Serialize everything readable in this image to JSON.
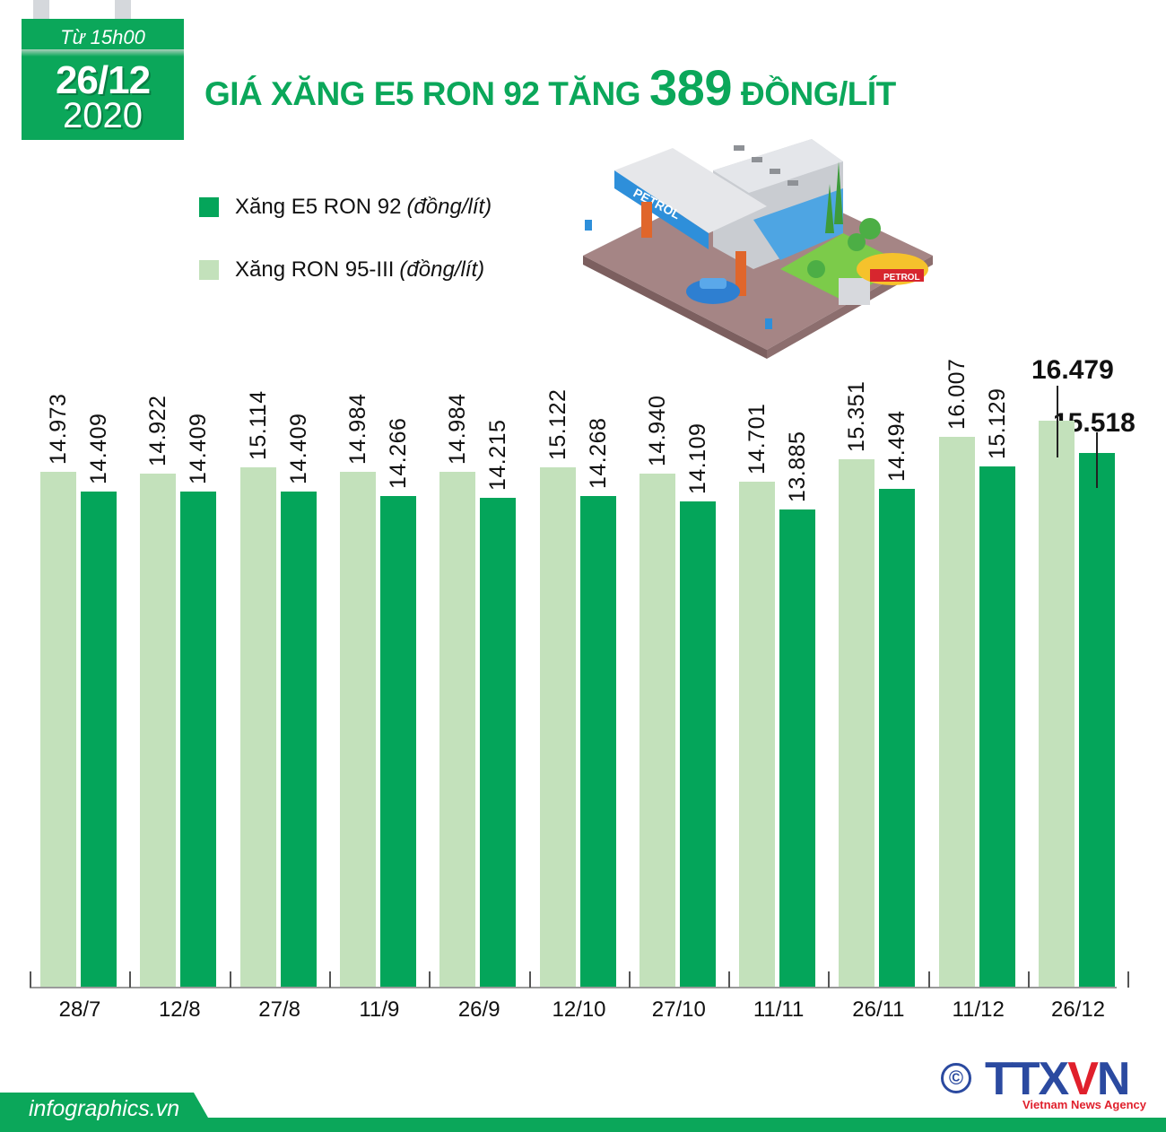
{
  "header": {
    "badge": {
      "from_time": "Từ 15h00",
      "date": "26/12",
      "year": "2020"
    },
    "title_prefix": "GIÁ XĂNG E5 RON 92 TĂNG",
    "title_number": "389",
    "title_suffix": "ĐỒNG/LÍT"
  },
  "legend": [
    {
      "name": "Xăng E5 RON 92",
      "unit": "(đồng/lít)",
      "color": "#04a55a"
    },
    {
      "name": "Xăng RON 95-III",
      "unit": "(đồng/lít)",
      "color": "#c3e1bb"
    }
  ],
  "illustration": {
    "sign_text": "PETROL",
    "tanker_text": "PETROL"
  },
  "colors": {
    "brand_green": "#0ba75a",
    "e5_ron92": "#04a55a",
    "ron95_iii": "#c3e1bb",
    "agency_blue": "#2b4aa0",
    "agency_red": "#e0202c"
  },
  "chart_data": {
    "type": "bar",
    "title": "GIÁ XĂNG E5 RON 92 TĂNG 389 ĐỒNG/LÍT",
    "subtitle": "Từ 15h00 26/12/2020",
    "xlabel": "",
    "ylabel": "đồng/lít",
    "grid": false,
    "legend_position": "top-left",
    "categories": [
      "28/7",
      "12/8",
      "27/8",
      "11/9",
      "26/9",
      "12/10",
      "27/10",
      "11/11",
      "26/11",
      "11/12",
      "26/12"
    ],
    "series": [
      {
        "name": "Xăng RON 95-III (đồng/lít)",
        "values": [
          14973,
          14922,
          15114,
          14984,
          14984,
          15122,
          14940,
          14701,
          15351,
          16007,
          16479
        ],
        "labels": [
          "14.973",
          "14.922",
          "15.114",
          "14.984",
          "14.984",
          "15.122",
          "14.940",
          "14.701",
          "15.351",
          "16.007",
          "16.479"
        ]
      },
      {
        "name": "Xăng E5 RON 92 (đồng/lít)",
        "values": [
          14409,
          14409,
          14409,
          14266,
          14215,
          14268,
          14109,
          13885,
          14494,
          15129,
          15518
        ],
        "labels": [
          "14.409",
          "14.409",
          "14.409",
          "14.266",
          "14.215",
          "14.268",
          "14.109",
          "13.885",
          "14.494",
          "15.129",
          "15.518"
        ]
      }
    ],
    "highlight_last": true
  },
  "footer": {
    "site": "infographics.vn",
    "copyright_symbol": "©",
    "agency_logo": "TTXVN",
    "agency_tagline": "Vietnam News Agency"
  }
}
